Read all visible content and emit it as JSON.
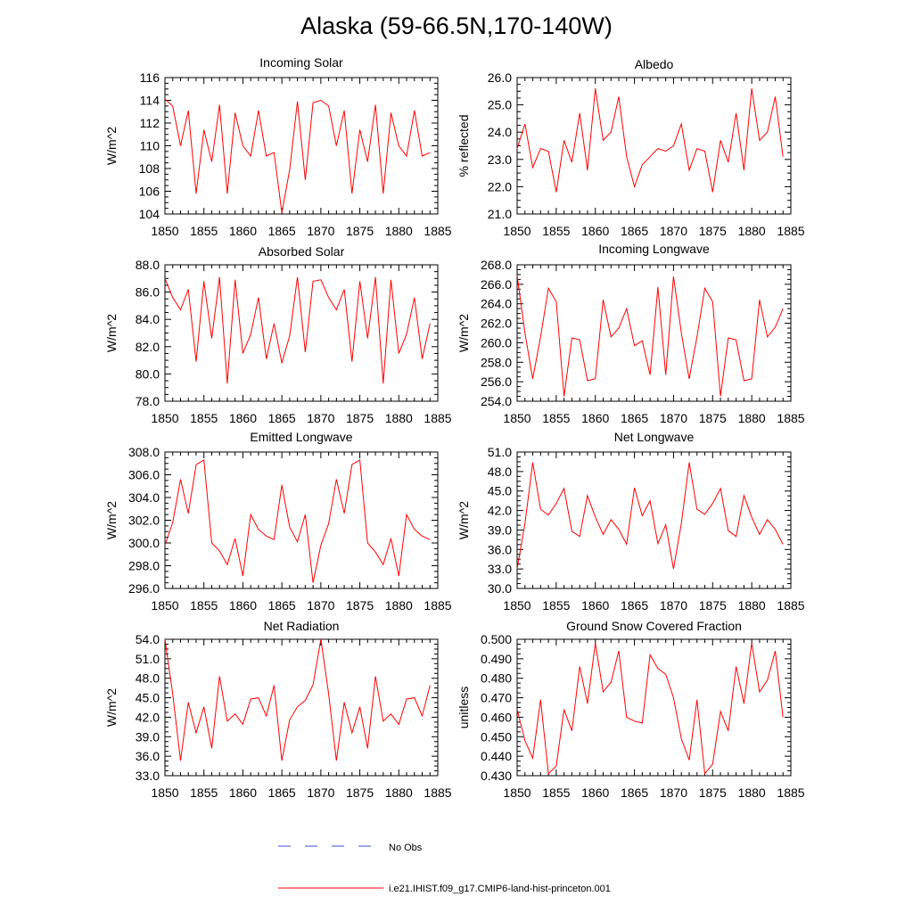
{
  "page_title": "Alaska (59-66.5N,170-140W)",
  "legend": {
    "entries": [
      {
        "label": "No Obs",
        "color": "#3b4fd6",
        "style": "dashed"
      },
      {
        "label": "i.e21.IHIST.f09_g17.CMIP6-land-hist-princeton.001",
        "color": "#ff0000",
        "style": "solid"
      }
    ]
  },
  "chart_data": [
    {
      "type": "line",
      "title": "Incoming Solar",
      "xlabel": "",
      "ylabel": "W/m^2",
      "xlim": [
        1850,
        1885
      ],
      "ylim": [
        104,
        116
      ],
      "xticks": [
        "1850",
        "1855",
        "1860",
        "1865",
        "1870",
        "1875",
        "1880",
        "1885"
      ],
      "yticks": [
        "104",
        "106",
        "108",
        "110",
        "112",
        "114",
        "116"
      ],
      "series": [
        {
          "color": "#ff0000",
          "x": [
            1850,
            1851,
            1852,
            1853,
            1854,
            1855,
            1856,
            1857,
            1858,
            1859,
            1860,
            1861,
            1862,
            1863,
            1864,
            1865,
            1866,
            1867,
            1868,
            1869,
            1870,
            1871,
            1872,
            1873,
            1874,
            1875,
            1876,
            1877,
            1878,
            1879,
            1880,
            1881,
            1882,
            1883,
            1884
          ],
          "values": [
            114.1,
            113.5,
            110.0,
            113.1,
            105.8,
            111.4,
            108.6,
            113.6,
            105.8,
            112.9,
            110.0,
            109.1,
            113.1,
            109.1,
            109.4,
            104.1,
            107.9,
            113.9,
            107.0,
            113.8,
            114.0,
            113.5,
            110.0,
            113.1,
            105.8,
            111.4,
            108.6,
            113.6,
            105.8,
            112.9,
            110.0,
            109.1,
            113.1,
            109.1,
            109.4
          ]
        }
      ]
    },
    {
      "type": "line",
      "title": "Albedo",
      "xlabel": "",
      "ylabel": "% reflected",
      "xlim": [
        1850,
        1885
      ],
      "ylim": [
        21.0,
        26.0
      ],
      "xticks": [
        "1850",
        "1855",
        "1860",
        "1865",
        "1870",
        "1875",
        "1880",
        "1885"
      ],
      "yticks": [
        "21.0",
        "22.0",
        "23.0",
        "24.0",
        "25.0",
        "26.0"
      ],
      "series": [
        {
          "color": "#ff0000",
          "x": [
            1850,
            1851,
            1852,
            1853,
            1854,
            1855,
            1856,
            1857,
            1858,
            1859,
            1860,
            1861,
            1862,
            1863,
            1864,
            1865,
            1866,
            1867,
            1868,
            1869,
            1870,
            1871,
            1872,
            1873,
            1874,
            1875,
            1876,
            1877,
            1878,
            1879,
            1880,
            1881,
            1882,
            1883,
            1884
          ],
          "values": [
            23.4,
            24.3,
            22.7,
            23.4,
            23.3,
            21.8,
            23.7,
            22.9,
            24.7,
            22.6,
            25.6,
            23.7,
            24.0,
            25.3,
            23.1,
            22.0,
            22.8,
            23.1,
            23.4,
            23.3,
            23.5,
            24.3,
            22.6,
            23.4,
            23.3,
            21.8,
            23.7,
            22.9,
            24.7,
            22.6,
            25.6,
            23.7,
            24.0,
            25.3,
            23.1
          ]
        }
      ]
    },
    {
      "type": "line",
      "title": "Absorbed Solar",
      "xlabel": "",
      "ylabel": "W/m^2",
      "xlim": [
        1850,
        1885
      ],
      "ylim": [
        78.0,
        88.0
      ],
      "xticks": [
        "1850",
        "1855",
        "1860",
        "1865",
        "1870",
        "1875",
        "1880",
        "1885"
      ],
      "yticks": [
        "78.0",
        "80.0",
        "82.0",
        "84.0",
        "86.0",
        "88.0"
      ],
      "series": [
        {
          "color": "#ff0000",
          "x": [
            1850,
            1851,
            1852,
            1853,
            1854,
            1855,
            1856,
            1857,
            1858,
            1859,
            1860,
            1861,
            1862,
            1863,
            1864,
            1865,
            1866,
            1867,
            1868,
            1869,
            1870,
            1871,
            1872,
            1873,
            1874,
            1875,
            1876,
            1877,
            1878,
            1879,
            1880,
            1881,
            1882,
            1883,
            1884
          ],
          "values": [
            87.0,
            85.6,
            84.7,
            86.2,
            80.9,
            86.8,
            82.6,
            87.1,
            79.3,
            86.9,
            81.5,
            82.9,
            85.6,
            81.1,
            83.7,
            80.8,
            82.8,
            87.1,
            81.6,
            86.8,
            86.9,
            85.6,
            84.7,
            86.2,
            80.9,
            86.8,
            82.6,
            87.1,
            79.3,
            86.9,
            81.5,
            82.9,
            85.6,
            81.1,
            83.7
          ]
        }
      ]
    },
    {
      "type": "line",
      "title": "Incoming Longwave",
      "xlabel": "",
      "ylabel": "W/m^2",
      "xlim": [
        1850,
        1885
      ],
      "ylim": [
        254.0,
        268.0
      ],
      "xticks": [
        "1850",
        "1855",
        "1860",
        "1865",
        "1870",
        "1875",
        "1880",
        "1885"
      ],
      "yticks": [
        "254.0",
        "256.0",
        "258.0",
        "260.0",
        "262.0",
        "264.0",
        "266.0",
        "268.0"
      ],
      "series": [
        {
          "color": "#ff0000",
          "x": [
            1850,
            1851,
            1852,
            1853,
            1854,
            1855,
            1856,
            1857,
            1858,
            1859,
            1860,
            1861,
            1862,
            1863,
            1864,
            1865,
            1866,
            1867,
            1868,
            1869,
            1870,
            1871,
            1872,
            1873,
            1874,
            1875,
            1876,
            1877,
            1878,
            1879,
            1880,
            1881,
            1882,
            1883,
            1884
          ],
          "values": [
            266.9,
            261.0,
            256.3,
            260.6,
            265.6,
            264.2,
            254.5,
            260.5,
            260.3,
            256.1,
            256.3,
            264.4,
            260.6,
            261.5,
            263.5,
            259.7,
            260.2,
            256.7,
            265.7,
            256.7,
            266.8,
            261.0,
            256.3,
            260.6,
            265.6,
            264.2,
            254.5,
            260.5,
            260.3,
            256.1,
            256.3,
            264.4,
            260.6,
            261.6,
            263.5
          ]
        }
      ]
    },
    {
      "type": "line",
      "title": "Emitted Longwave",
      "xlabel": "",
      "ylabel": "W/m^2",
      "xlim": [
        1850,
        1885
      ],
      "ylim": [
        296.0,
        308.0
      ],
      "xticks": [
        "1850",
        "1855",
        "1860",
        "1865",
        "1870",
        "1875",
        "1880",
        "1885"
      ],
      "yticks": [
        "296.0",
        "298.0",
        "300.0",
        "302.0",
        "304.0",
        "306.0",
        "308.0"
      ],
      "series": [
        {
          "color": "#ff0000",
          "x": [
            1850,
            1851,
            1852,
            1853,
            1854,
            1855,
            1856,
            1857,
            1858,
            1859,
            1860,
            1861,
            1862,
            1863,
            1864,
            1865,
            1866,
            1867,
            1868,
            1869,
            1870,
            1871,
            1872,
            1873,
            1874,
            1875,
            1876,
            1877,
            1878,
            1879,
            1880,
            1881,
            1882,
            1883,
            1884
          ],
          "values": [
            299.8,
            301.8,
            305.6,
            302.6,
            306.9,
            307.3,
            300.0,
            299.3,
            298.1,
            300.4,
            297.1,
            302.5,
            301.2,
            300.6,
            300.3,
            305.1,
            301.4,
            300.1,
            302.5,
            296.5,
            299.8,
            301.7,
            305.6,
            302.6,
            306.9,
            307.3,
            300.0,
            299.2,
            298.1,
            300.4,
            297.1,
            302.5,
            301.2,
            300.6,
            300.3
          ]
        }
      ]
    },
    {
      "type": "line",
      "title": "Net Longwave",
      "xlabel": "",
      "ylabel": "W/m^2",
      "xlim": [
        1850,
        1885
      ],
      "ylim": [
        30.0,
        51.0
      ],
      "xticks": [
        "1850",
        "1855",
        "1860",
        "1865",
        "1870",
        "1875",
        "1880",
        "1885"
      ],
      "yticks": [
        "30.0",
        "33.0",
        "36.0",
        "39.0",
        "42.0",
        "45.0",
        "48.0",
        "51.0"
      ],
      "series": [
        {
          "color": "#ff0000",
          "x": [
            1850,
            1851,
            1852,
            1853,
            1854,
            1855,
            1856,
            1857,
            1858,
            1859,
            1860,
            1861,
            1862,
            1863,
            1864,
            1865,
            1866,
            1867,
            1868,
            1869,
            1870,
            1871,
            1872,
            1873,
            1874,
            1875,
            1876,
            1877,
            1878,
            1879,
            1880,
            1881,
            1882,
            1883,
            1884
          ],
          "values": [
            33.0,
            40.0,
            49.4,
            42.2,
            41.3,
            43.1,
            45.4,
            38.8,
            38.0,
            44.3,
            41.0,
            38.3,
            40.6,
            39.1,
            36.8,
            45.5,
            41.2,
            43.5,
            36.9,
            39.8,
            33.0,
            40.0,
            49.4,
            42.2,
            41.4,
            43.1,
            45.4,
            38.9,
            38.0,
            44.3,
            41.0,
            38.3,
            40.6,
            39.1,
            36.8
          ]
        }
      ]
    },
    {
      "type": "line",
      "title": "Net Radiation",
      "xlabel": "",
      "ylabel": "W/m^2",
      "xlim": [
        1850,
        1885
      ],
      "ylim": [
        33.0,
        54.0
      ],
      "xticks": [
        "1850",
        "1855",
        "1860",
        "1865",
        "1870",
        "1875",
        "1880",
        "1885"
      ],
      "yticks": [
        "33.0",
        "36.0",
        "39.0",
        "42.0",
        "45.0",
        "48.0",
        "51.0",
        "54.0"
      ],
      "series": [
        {
          "color": "#ff0000",
          "x": [
            1850,
            1851,
            1852,
            1853,
            1854,
            1855,
            1856,
            1857,
            1858,
            1859,
            1860,
            1861,
            1862,
            1863,
            1864,
            1865,
            1866,
            1867,
            1868,
            1869,
            1870,
            1871,
            1872,
            1873,
            1874,
            1875,
            1876,
            1877,
            1878,
            1879,
            1880,
            1881,
            1882,
            1883,
            1884
          ],
          "values": [
            54.0,
            45.6,
            35.3,
            44.3,
            39.6,
            43.6,
            37.2,
            48.3,
            41.4,
            42.5,
            40.9,
            44.8,
            45.0,
            42.2,
            46.9,
            35.3,
            41.6,
            43.6,
            44.6,
            47.0,
            54.0,
            45.6,
            35.3,
            44.3,
            39.6,
            43.6,
            37.2,
            48.3,
            41.4,
            42.5,
            40.9,
            44.8,
            45.0,
            42.2,
            46.9
          ]
        }
      ]
    },
    {
      "type": "line",
      "title": "Ground Snow Covered Fraction",
      "xlabel": "",
      "ylabel": "unitless",
      "xlim": [
        1850,
        1885
      ],
      "ylim": [
        0.43,
        0.5
      ],
      "xticks": [
        "1850",
        "1855",
        "1860",
        "1865",
        "1870",
        "1875",
        "1880",
        "1885"
      ],
      "yticks": [
        "0.430",
        "0.440",
        "0.450",
        "0.460",
        "0.470",
        "0.480",
        "0.490",
        "0.500"
      ],
      "series": [
        {
          "color": "#ff0000",
          "x": [
            1850,
            1851,
            1852,
            1853,
            1854,
            1855,
            1856,
            1857,
            1858,
            1859,
            1860,
            1861,
            1862,
            1863,
            1864,
            1865,
            1866,
            1867,
            1868,
            1869,
            1870,
            1871,
            1872,
            1873,
            1874,
            1875,
            1876,
            1877,
            1878,
            1879,
            1880,
            1881,
            1882,
            1883,
            1884
          ],
          "values": [
            0.464,
            0.448,
            0.439,
            0.469,
            0.431,
            0.435,
            0.464,
            0.453,
            0.486,
            0.467,
            0.498,
            0.473,
            0.478,
            0.494,
            0.46,
            0.458,
            0.457,
            0.492,
            0.485,
            0.482,
            0.47,
            0.449,
            0.438,
            0.469,
            0.431,
            0.436,
            0.463,
            0.453,
            0.486,
            0.467,
            0.498,
            0.473,
            0.479,
            0.494,
            0.46
          ]
        }
      ]
    }
  ]
}
